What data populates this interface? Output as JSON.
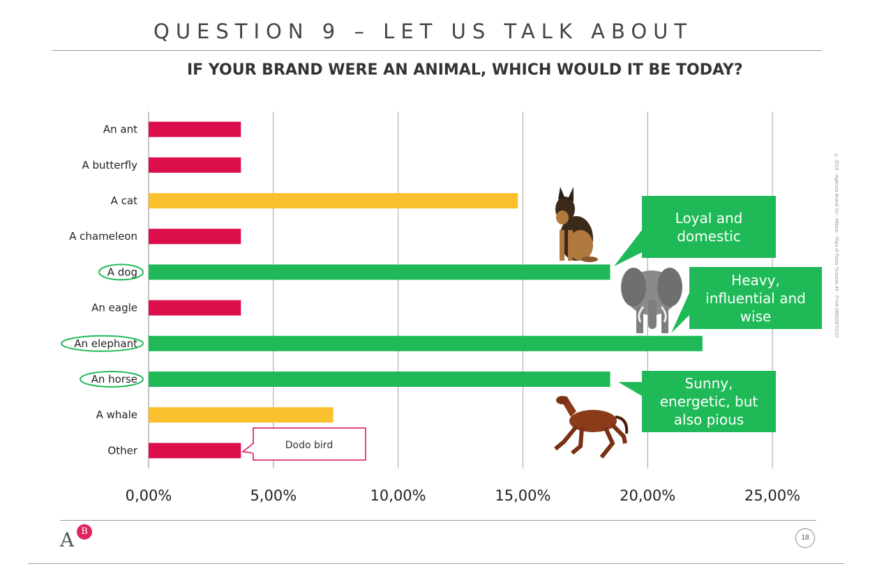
{
  "header": {
    "title": "QUESTION 9 – LET US TALK ABOUT"
  },
  "chart_data": {
    "type": "bar",
    "orientation": "horizontal",
    "title": "IF YOUR BRAND WERE AN ANIMAL, WHICH WOULD IT BE TODAY?",
    "categories": [
      "An ant",
      "A butterfly",
      "A cat",
      "A chameleon",
      "A dog",
      "An eagle",
      "An elephant",
      "An horse",
      "A whale",
      "Other"
    ],
    "values": [
      3.7,
      3.7,
      14.8,
      3.7,
      18.5,
      3.7,
      22.2,
      18.5,
      7.4,
      3.7
    ],
    "bar_colors": [
      "#dc0f4c",
      "#dc0f4c",
      "#fbc02d",
      "#dc0f4c",
      "#1fba57",
      "#dc0f4c",
      "#1fba57",
      "#1fba57",
      "#fbc02d",
      "#dc0f4c"
    ],
    "highlighted": [
      "A dog",
      "An elephant",
      "An horse"
    ],
    "xlim": [
      0,
      25
    ],
    "xticks": [
      0,
      5,
      10,
      15,
      20,
      25
    ],
    "xtick_labels": [
      "0,00%",
      "5,00%",
      "10,00%",
      "15,00%",
      "20,00%",
      "25,00%"
    ],
    "grid": true,
    "xlabel": "",
    "ylabel": ""
  },
  "annotations": {
    "dog": "Loyal and domestic",
    "elephant": "Heavy, influential and wise",
    "horse": "Sunny, energetic, but also pious",
    "other": "Dodo bird"
  },
  "images": {
    "dog": "dog-photo",
    "elephant": "elephant-photo",
    "horse": "horse-photo"
  },
  "colors": {
    "accent_green": "#1fba57",
    "accent_red": "#dc0f4c",
    "accent_yellow": "#fbc02d"
  },
  "footer": {
    "copyright": "© 2015 - Agenzia Brand Srl - Milano - Ripa di Porta Ticinese 49 - P.IVA 08802870157",
    "logo_a": "A",
    "logo_b": "B",
    "page_number": "18"
  }
}
